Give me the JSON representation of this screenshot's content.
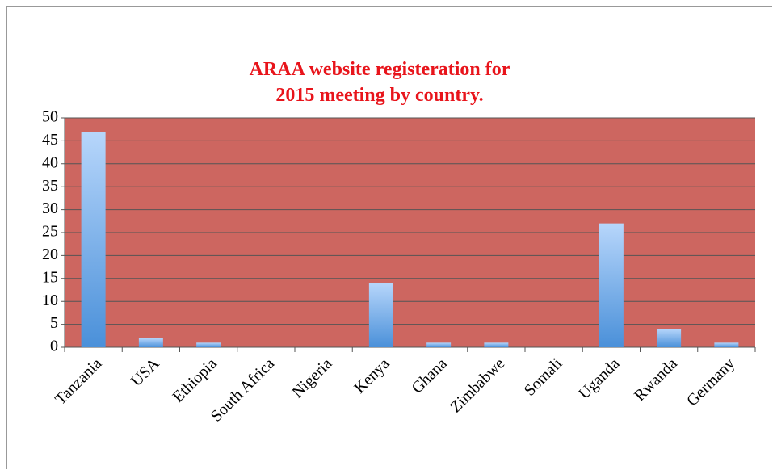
{
  "chart_data": {
    "type": "bar",
    "title": "ARAA website registeration for 2015 meeting by country.",
    "categories": [
      "Tanzania",
      "USA",
      "Ethiopia",
      "South Africa",
      "Nigeria",
      "Kenya",
      "Ghana",
      "Zimbabwe",
      "Somali",
      "Uganda",
      "Rwanda",
      "Germany"
    ],
    "values": [
      47,
      2,
      1,
      0,
      0,
      14,
      1,
      1,
      0,
      27,
      4,
      1
    ],
    "color": "#4a90d9",
    "background_color": "#cd6660",
    "ylim": [
      0,
      50
    ],
    "yticks": [
      0,
      5,
      10,
      15,
      20,
      25,
      30,
      35,
      40,
      45,
      50
    ],
    "grid": true
  }
}
